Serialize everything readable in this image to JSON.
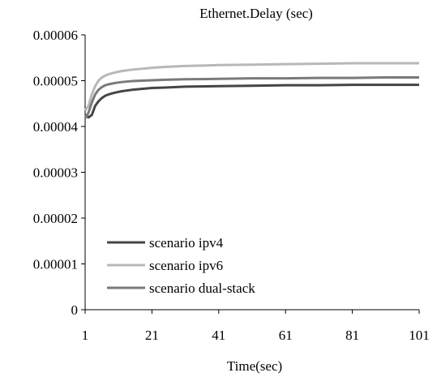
{
  "chart_data": {
    "type": "line",
    "title": "Ethernet.Delay (sec)",
    "xlabel": "Time(sec)",
    "ylabel": "",
    "xlim": [
      1,
      101
    ],
    "ylim": [
      0,
      6e-05
    ],
    "x_ticks": [
      "1",
      "21",
      "41",
      "61",
      "81",
      "101"
    ],
    "x_tick_values": [
      1,
      21,
      41,
      61,
      81,
      101
    ],
    "y_ticks": [
      "0",
      "0.00001",
      "0.00002",
      "0.00003",
      "0.00004",
      "0.00005",
      "0.00006"
    ],
    "y_tick_values": [
      0,
      1e-05,
      2e-05,
      3e-05,
      4e-05,
      5e-05,
      6e-05
    ],
    "grid": false,
    "legend_position": "bottom-left",
    "x": [
      1,
      2,
      3,
      4,
      5,
      6,
      7,
      8,
      10,
      12,
      15,
      18,
      21,
      25,
      31,
      41,
      51,
      61,
      71,
      81,
      91,
      101
    ],
    "series": [
      {
        "name": "scenario ipv4",
        "color": "#454545",
        "values": [
          4.25e-05,
          4.2e-05,
          4.25e-05,
          4.45e-05,
          4.55e-05,
          4.62e-05,
          4.67e-05,
          4.7e-05,
          4.74e-05,
          4.77e-05,
          4.8e-05,
          4.82e-05,
          4.84e-05,
          4.85e-05,
          4.87e-05,
          4.88e-05,
          4.89e-05,
          4.9e-05,
          4.9e-05,
          4.91e-05,
          4.91e-05,
          4.91e-05
        ]
      },
      {
        "name": "scenario ipv6",
        "color": "#b8b8b8",
        "values": [
          4.35e-05,
          4.45e-05,
          4.7e-05,
          4.88e-05,
          5e-05,
          5.07e-05,
          5.11e-05,
          5.14e-05,
          5.18e-05,
          5.21e-05,
          5.24e-05,
          5.26e-05,
          5.28e-05,
          5.3e-05,
          5.32e-05,
          5.34e-05,
          5.35e-05,
          5.36e-05,
          5.37e-05,
          5.38e-05,
          5.38e-05,
          5.38e-05
        ]
      },
      {
        "name": "scenario dual-stack",
        "color": "#7a7a7a",
        "values": [
          4.18e-05,
          4.3e-05,
          4.52e-05,
          4.7e-05,
          4.8e-05,
          4.86e-05,
          4.9e-05,
          4.92e-05,
          4.95e-05,
          4.97e-05,
          4.99e-05,
          5e-05,
          5.01e-05,
          5.02e-05,
          5.03e-05,
          5.04e-05,
          5.05e-05,
          5.05e-05,
          5.06e-05,
          5.06e-05,
          5.07e-05,
          5.07e-05
        ]
      }
    ]
  }
}
